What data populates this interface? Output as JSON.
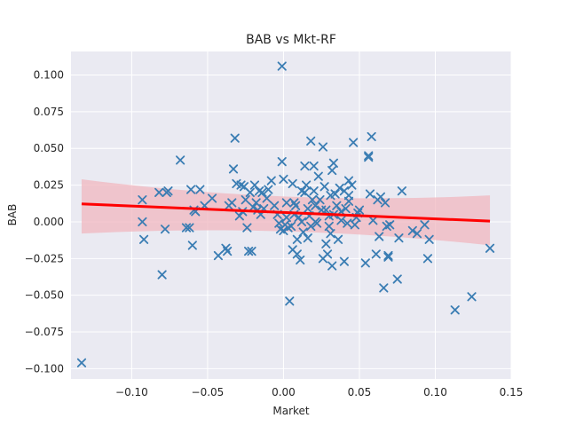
{
  "chart_data": {
    "type": "scatter",
    "title": "BAB vs Mkt-RF",
    "xlabel": "Market",
    "ylabel": "BAB",
    "xlim": [
      -0.14,
      0.15
    ],
    "ylim": [
      -0.107,
      0.116
    ],
    "x_ticks": [
      -0.1,
      -0.05,
      0.0,
      0.05,
      0.1,
      0.15
    ],
    "x_tick_labels": [
      "−0.10",
      "−0.05",
      "0.00",
      "0.05",
      "0.10",
      "0.15"
    ],
    "y_ticks": [
      -0.1,
      -0.075,
      -0.05,
      -0.025,
      0.0,
      0.025,
      0.05,
      0.075,
      0.1
    ],
    "y_tick_labels": [
      "−0.100",
      "−0.075",
      "−0.050",
      "−0.025",
      "0.000",
      "0.025",
      "0.050",
      "0.075",
      "0.100"
    ],
    "grid": true,
    "marker": "x",
    "colors": {
      "background": "#eaeaf2",
      "grid": "#ffffff",
      "points": "#3a7db3",
      "regression_line": "#ff0000",
      "confidence_band": "#f0b7bf"
    },
    "series": [
      {
        "points": [
          [
            -0.133,
            -0.096
          ],
          [
            -0.093,
            0.015
          ],
          [
            -0.093,
            0.0
          ],
          [
            -0.092,
            -0.012
          ],
          [
            -0.082,
            0.02
          ],
          [
            -0.08,
            -0.036
          ],
          [
            -0.078,
            -0.005
          ],
          [
            -0.076,
            0.021
          ],
          [
            -0.077,
            0.02
          ],
          [
            -0.068,
            0.042
          ],
          [
            -0.064,
            -0.004
          ],
          [
            -0.062,
            -0.004
          ],
          [
            -0.061,
            0.022
          ],
          [
            -0.06,
            -0.016
          ],
          [
            -0.059,
            0.008
          ],
          [
            -0.058,
            0.007
          ],
          [
            -0.055,
            0.022
          ],
          [
            -0.052,
            0.011
          ],
          [
            -0.047,
            0.016
          ],
          [
            -0.043,
            -0.023
          ],
          [
            -0.038,
            -0.018
          ],
          [
            -0.037,
            -0.02
          ],
          [
            -0.036,
            0.011
          ],
          [
            -0.034,
            0.013
          ],
          [
            -0.033,
            0.036
          ],
          [
            -0.032,
            0.057
          ],
          [
            -0.031,
            0.026
          ],
          [
            -0.029,
            0.004
          ],
          [
            -0.028,
            0.025
          ],
          [
            -0.027,
            0.007
          ],
          [
            -0.026,
            0.024
          ],
          [
            -0.025,
            0.015
          ],
          [
            -0.024,
            -0.004
          ],
          [
            -0.023,
            -0.02
          ],
          [
            -0.022,
            0.02
          ],
          [
            -0.021,
            -0.02
          ],
          [
            -0.02,
            0.01
          ],
          [
            -0.019,
            0.025
          ],
          [
            -0.018,
            0.013
          ],
          [
            -0.017,
            0.008
          ],
          [
            -0.016,
            0.021
          ],
          [
            -0.015,
            0.005
          ],
          [
            -0.014,
            0.02
          ],
          [
            -0.013,
            0.009
          ],
          [
            -0.011,
            0.016
          ],
          [
            -0.01,
            0.022
          ],
          [
            -0.008,
            0.028
          ],
          [
            -0.006,
            0.011
          ],
          [
            -0.004,
            0.005
          ],
          [
            -0.003,
            -0.001
          ],
          [
            -0.002,
            -0.005
          ],
          [
            -0.001,
            0.041
          ],
          [
            -0.001,
            0.106
          ],
          [
            0.0,
            -0.006
          ],
          [
            0.0,
            0.029
          ],
          [
            0.001,
            -0.002
          ],
          [
            0.002,
            0.003
          ],
          [
            0.002,
            0.013
          ],
          [
            0.003,
            -0.004
          ],
          [
            0.004,
            -0.054
          ],
          [
            0.005,
            -0.003
          ],
          [
            0.006,
            -0.019
          ],
          [
            0.006,
            0.026
          ],
          [
            0.007,
            0.005
          ],
          [
            0.007,
            0.013
          ],
          [
            0.008,
            0.011
          ],
          [
            0.009,
            -0.012
          ],
          [
            0.009,
            -0.022
          ],
          [
            0.01,
            0.003
          ],
          [
            0.011,
            -0.026
          ],
          [
            0.012,
            0.0
          ],
          [
            0.012,
            0.021
          ],
          [
            0.013,
            -0.007
          ],
          [
            0.014,
            0.02
          ],
          [
            0.014,
            0.038
          ],
          [
            0.015,
            0.025
          ],
          [
            0.016,
            -0.011
          ],
          [
            0.016,
            0.009
          ],
          [
            0.017,
            0.004
          ],
          [
            0.018,
            -0.003
          ],
          [
            0.018,
            0.055
          ],
          [
            0.019,
            0.015
          ],
          [
            0.02,
            0.038
          ],
          [
            0.02,
            0.021
          ],
          [
            0.021,
            0.011
          ],
          [
            0.021,
            0.0
          ],
          [
            0.022,
            -0.001
          ],
          [
            0.023,
            0.031
          ],
          [
            0.024,
            0.015
          ],
          [
            0.025,
            0.008
          ],
          [
            0.026,
            -0.025
          ],
          [
            0.026,
            0.051
          ],
          [
            0.027,
            0.024
          ],
          [
            0.028,
            -0.015
          ],
          [
            0.028,
            0.008
          ],
          [
            0.029,
            -0.022
          ],
          [
            0.03,
            -0.003
          ],
          [
            0.03,
            0.004
          ],
          [
            0.031,
            -0.008
          ],
          [
            0.031,
            0.018
          ],
          [
            0.032,
            -0.03
          ],
          [
            0.032,
            0.035
          ],
          [
            0.033,
            0.04
          ],
          [
            0.033,
            0.005
          ],
          [
            0.034,
            0.019
          ],
          [
            0.035,
            0.011
          ],
          [
            0.036,
            -0.012
          ],
          [
            0.037,
            0.023
          ],
          [
            0.038,
            0.007
          ],
          [
            0.038,
            0.001
          ],
          [
            0.04,
            -0.027
          ],
          [
            0.04,
            0.021
          ],
          [
            0.041,
            0.009
          ],
          [
            0.042,
            -0.001
          ],
          [
            0.043,
            0.028
          ],
          [
            0.043,
            0.018
          ],
          [
            0.045,
            0.025
          ],
          [
            0.046,
            0.054
          ],
          [
            0.047,
            -0.002
          ],
          [
            0.048,
            0.003
          ],
          [
            0.049,
            0.006
          ],
          [
            0.05,
            0.008
          ],
          [
            0.054,
            -0.028
          ],
          [
            0.056,
            0.045
          ],
          [
            0.056,
            0.044
          ],
          [
            0.057,
            0.019
          ],
          [
            0.058,
            0.058
          ],
          [
            0.059,
            0.001
          ],
          [
            0.061,
            -0.022
          ],
          [
            0.062,
            0.015
          ],
          [
            0.063,
            -0.01
          ],
          [
            0.064,
            0.017
          ],
          [
            0.066,
            -0.045
          ],
          [
            0.067,
            0.013
          ],
          [
            0.068,
            -0.003
          ],
          [
            0.069,
            -0.024
          ],
          [
            0.069,
            -0.023
          ],
          [
            0.07,
            -0.002
          ],
          [
            0.075,
            -0.039
          ],
          [
            0.076,
            -0.011
          ],
          [
            0.078,
            0.021
          ],
          [
            0.085,
            -0.006
          ],
          [
            0.088,
            -0.008
          ],
          [
            0.093,
            -0.002
          ],
          [
            0.095,
            -0.025
          ],
          [
            0.096,
            -0.012
          ],
          [
            0.113,
            -0.06
          ],
          [
            0.124,
            -0.051
          ],
          [
            0.136,
            -0.018
          ],
          [
            0.043,
            0.014
          ]
        ]
      }
    ],
    "regression": {
      "x_range": [
        -0.133,
        0.136
      ],
      "slope": -0.0435,
      "intercept": 0.0064,
      "ci_left": [
        -0.008,
        0.029
      ],
      "ci_center": [
        -0.003,
        0.013
      ],
      "ci_right": [
        -0.016,
        0.018
      ]
    }
  }
}
